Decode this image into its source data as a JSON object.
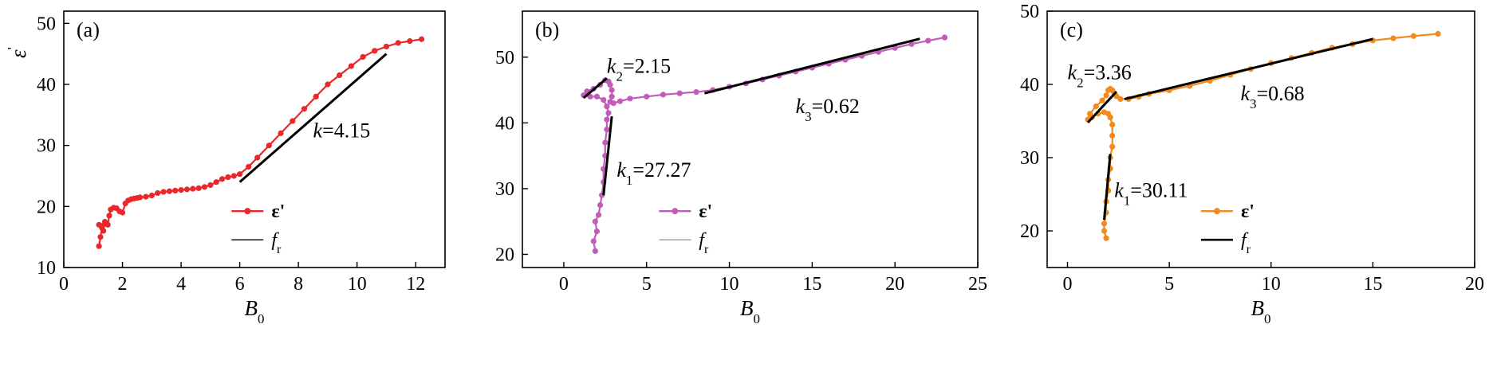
{
  "chart_data": [
    {
      "type": "scatter",
      "panel_label": "(a)",
      "xlabel": "B",
      "xlabel_sub": "0",
      "ylabel": "ε",
      "ylabel_sup": "'",
      "xlim": [
        0,
        13
      ],
      "ylim": [
        10,
        52
      ],
      "xticks": [
        0,
        2,
        4,
        6,
        8,
        10,
        12
      ],
      "yticks": [
        10,
        20,
        30,
        40,
        50
      ],
      "series": [
        {
          "name": "ε'",
          "color": "#e8282a",
          "marker": "circle",
          "x": [
            1.2,
            1.25,
            1.3,
            1.2,
            1.35,
            1.4,
            1.3,
            1.5,
            1.55,
            1.6,
            1.7,
            1.8,
            1.9,
            2.0,
            2.1,
            2.2,
            2.3,
            2.4,
            2.5,
            2.6,
            2.8,
            3.0,
            3.2,
            3.4,
            3.6,
            3.8,
            4.0,
            4.2,
            4.4,
            4.6,
            4.8,
            5.0,
            5.2,
            5.4,
            5.6,
            5.8,
            6.0,
            6.3,
            6.6,
            7.0,
            7.4,
            7.8,
            8.2,
            8.6,
            9.0,
            9.4,
            9.8,
            10.2,
            10.6,
            11.0,
            11.4,
            11.8,
            12.2
          ],
          "y": [
            13.5,
            15.0,
            16.5,
            17.0,
            16.0,
            17.5,
            16.8,
            17.0,
            18.5,
            19.5,
            19.8,
            19.7,
            19.2,
            19.0,
            20.5,
            21.0,
            21.2,
            21.3,
            21.4,
            21.5,
            21.6,
            21.8,
            22.2,
            22.4,
            22.5,
            22.6,
            22.7,
            22.8,
            22.9,
            23.0,
            23.2,
            23.5,
            24.0,
            24.5,
            24.8,
            25.0,
            25.3,
            26.5,
            28.0,
            30.0,
            32.0,
            34.0,
            36.0,
            38.0,
            40.0,
            41.5,
            43.0,
            44.5,
            45.5,
            46.2,
            46.8,
            47.1,
            47.4
          ]
        }
      ],
      "fits": [
        {
          "name": "f",
          "x": [
            6.0,
            11.0
          ],
          "y": [
            24.0,
            45.0
          ],
          "color": "#000000"
        }
      ],
      "annotations": [
        {
          "text_main": "k",
          "text_rest": "=4.15",
          "x": 8.5,
          "y": 31.3
        }
      ],
      "legend": {
        "position": "lower-right",
        "entries": [
          {
            "label": "ε'",
            "style": "series"
          },
          {
            "label": "f",
            "sub": "r",
            "style": "fit"
          }
        ]
      }
    },
    {
      "type": "scatter",
      "panel_label": "(b)",
      "xlabel": "B",
      "xlabel_sub": "0",
      "ylabel": "",
      "xlim": [
        -2.5,
        25
      ],
      "ylim": [
        18,
        57
      ],
      "xticks": [
        0,
        5,
        10,
        15,
        20,
        25
      ],
      "yticks": [
        20,
        30,
        40,
        50
      ],
      "series": [
        {
          "name": "ε'",
          "color": "#c25cb9",
          "marker": "circle",
          "x": [
            1.9,
            1.8,
            2.0,
            1.9,
            2.1,
            2.2,
            2.3,
            2.4,
            2.4,
            2.5,
            2.5,
            2.6,
            2.6,
            2.7,
            2.6,
            2.4,
            2.0,
            1.6,
            1.2,
            1.4,
            1.8,
            2.2,
            2.5,
            2.7,
            2.8,
            2.9,
            2.9,
            2.8,
            3.0,
            3.4,
            4.0,
            5.0,
            6.0,
            7.0,
            8.0,
            9.0,
            10.0,
            11.0,
            12.0,
            13.0,
            14.0,
            15.0,
            16.0,
            17.0,
            18.0,
            19.0,
            20.0,
            21.0,
            22.0,
            23.0
          ],
          "y": [
            20.5,
            22.0,
            23.5,
            25.0,
            26.0,
            27.5,
            29.0,
            31.0,
            33.0,
            35.0,
            37.0,
            39.0,
            40.5,
            41.5,
            42.5,
            43.5,
            44.0,
            44.0,
            44.2,
            44.8,
            45.2,
            45.8,
            46.5,
            46.3,
            45.8,
            45.0,
            44.0,
            43.2,
            43.0,
            43.3,
            43.7,
            44.0,
            44.3,
            44.5,
            44.7,
            45.0,
            45.5,
            46.0,
            46.6,
            47.2,
            47.8,
            48.4,
            49.0,
            49.6,
            50.2,
            50.8,
            51.4,
            52.0,
            52.5,
            53.0
          ]
        }
      ],
      "fits": [
        {
          "name": "f",
          "x": [
            2.4,
            2.9
          ],
          "y": [
            29.0,
            41.0
          ],
          "color": "#000000"
        },
        {
          "name": "f",
          "x": [
            1.2,
            2.6
          ],
          "y": [
            43.8,
            46.8
          ],
          "color": "#000000"
        },
        {
          "name": "f",
          "x": [
            8.5,
            21.5
          ],
          "y": [
            44.5,
            52.8
          ],
          "color": "#000000"
        }
      ],
      "annotations": [
        {
          "text_main": "k",
          "text_sub": "2",
          "text_rest": "=2.15",
          "x": 2.6,
          "y": 47.6
        },
        {
          "text_main": "k",
          "text_sub": "3",
          "text_rest": "=0.62",
          "x": 14.0,
          "y": 41.5
        },
        {
          "text_main": "k",
          "text_sub": "1",
          "text_rest": "=27.27",
          "x": 3.2,
          "y": 31.8
        }
      ],
      "legend": {
        "position": "lower-right",
        "entries": [
          {
            "label": "ε'",
            "style": "series"
          },
          {
            "label": "f",
            "sub": "r",
            "style": "fit"
          }
        ]
      }
    },
    {
      "type": "scatter",
      "panel_label": "(c)",
      "xlabel": "B",
      "xlabel_sub": "0",
      "ylabel": "",
      "xlim": [
        -1,
        20
      ],
      "ylim": [
        15,
        50
      ],
      "xticks": [
        0,
        5,
        10,
        15,
        20
      ],
      "yticks": [
        20,
        30,
        40,
        50
      ],
      "series": [
        {
          "name": "ε'",
          "color": "#f28a1e",
          "marker": "circle",
          "x": [
            1.9,
            1.8,
            1.8,
            1.9,
            1.9,
            2.0,
            2.0,
            2.1,
            2.1,
            2.2,
            2.2,
            2.2,
            2.1,
            2.0,
            1.8,
            1.5,
            1.2,
            1.0,
            1.1,
            1.4,
            1.7,
            1.9,
            2.0,
            2.1,
            2.2,
            2.3,
            2.4,
            2.6,
            3.0,
            3.5,
            4.0,
            5.0,
            6.0,
            7.0,
            8.0,
            9.0,
            10.0,
            11.0,
            12.0,
            13.0,
            14.0,
            15.0,
            16.0,
            17.0,
            18.2
          ],
          "y": [
            19.0,
            20.0,
            21.0,
            22.5,
            24.0,
            25.5,
            27.0,
            28.5,
            30.0,
            31.5,
            33.0,
            34.5,
            35.5,
            36.0,
            36.2,
            36.0,
            35.5,
            35.2,
            36.0,
            37.0,
            37.8,
            38.5,
            39.2,
            39.4,
            39.2,
            38.8,
            38.4,
            38.0,
            38.0,
            38.3,
            38.7,
            39.2,
            39.8,
            40.5,
            41.3,
            42.1,
            42.9,
            43.6,
            44.3,
            45.0,
            45.5,
            46.0,
            46.3,
            46.6,
            46.9
          ]
        }
      ],
      "fits": [
        {
          "name": "f",
          "x": [
            1.8,
            2.1
          ],
          "y": [
            21.5,
            30.5
          ],
          "color": "#000000"
        },
        {
          "name": "f",
          "x": [
            1.0,
            2.4
          ],
          "y": [
            34.8,
            39.0
          ],
          "color": "#000000"
        },
        {
          "name": "f",
          "x": [
            2.8,
            15.0
          ],
          "y": [
            38.0,
            46.2
          ],
          "color": "#000000"
        }
      ],
      "annotations": [
        {
          "text_main": "k",
          "text_sub": "2",
          "text_rest": "=3.36",
          "x": 0.0,
          "y": 40.7
        },
        {
          "text_main": "k",
          "text_sub": "3",
          "text_rest": "=0.68",
          "x": 8.5,
          "y": 37.8
        },
        {
          "text_main": "k",
          "text_sub": "1",
          "text_rest": "=30.11",
          "x": 2.3,
          "y": 24.6
        }
      ],
      "legend": {
        "position": "lower-right",
        "entries": [
          {
            "label": "ε'",
            "style": "series"
          },
          {
            "label": "f",
            "sub": "r",
            "style": "fit"
          }
        ]
      }
    }
  ]
}
